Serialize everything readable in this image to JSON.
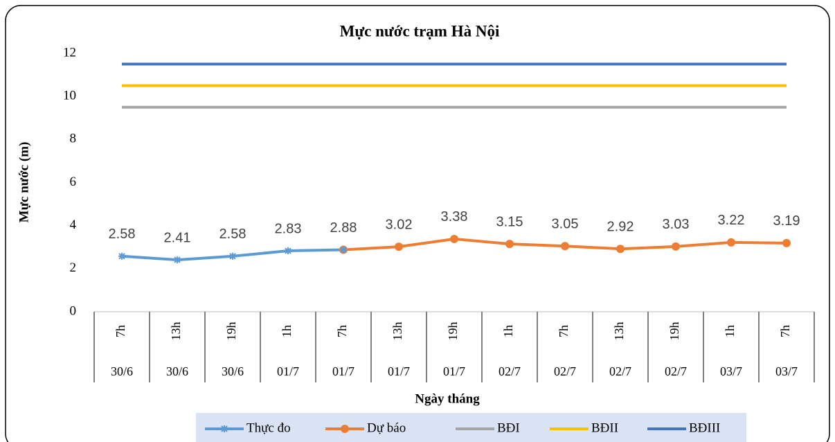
{
  "chart_data": {
    "type": "line",
    "title": "Mực nước trạm Hà Nội",
    "y_label": "Mực nước (m)",
    "x_label": "Ngày tháng",
    "categories": [
      [
        "7h",
        "30/6"
      ],
      [
        "13h",
        "30/6"
      ],
      [
        "19h",
        "30/6"
      ],
      [
        "1h",
        "01/7"
      ],
      [
        "7h",
        "01/7"
      ],
      [
        "13h",
        "01/7"
      ],
      [
        "19h",
        "01/7"
      ],
      [
        "1h",
        "02/7"
      ],
      [
        "7h",
        "02/7"
      ],
      [
        "13h",
        "02/7"
      ],
      [
        "19h",
        "02/7"
      ],
      [
        "1h",
        "03/7"
      ],
      [
        "7h",
        "03/7"
      ]
    ],
    "series": [
      {
        "name": "Thực đo",
        "color": "#5b9bd5",
        "marker": "star",
        "values": [
          2.58,
          2.41,
          2.58,
          2.83,
          2.88,
          null,
          null,
          null,
          null,
          null,
          null,
          null,
          null
        ],
        "labels": true
      },
      {
        "name": "Dự báo",
        "color": "#ed7d31",
        "marker": "circle",
        "values": [
          null,
          null,
          null,
          null,
          2.88,
          3.02,
          3.38,
          3.15,
          3.05,
          2.92,
          3.03,
          3.22,
          3.19
        ],
        "labels": true
      },
      {
        "name": "BĐI",
        "color": "#a5a5a5",
        "values": [
          9.5,
          9.5,
          9.5,
          9.5,
          9.5,
          9.5,
          9.5,
          9.5,
          9.5,
          9.5,
          9.5,
          9.5,
          9.5
        ]
      },
      {
        "name": "BĐII",
        "color": "#ffc000",
        "values": [
          10.5,
          10.5,
          10.5,
          10.5,
          10.5,
          10.5,
          10.5,
          10.5,
          10.5,
          10.5,
          10.5,
          10.5,
          10.5
        ]
      },
      {
        "name": "BĐIII",
        "color": "#4472c4",
        "values": [
          11.5,
          11.5,
          11.5,
          11.5,
          11.5,
          11.5,
          11.5,
          11.5,
          11.5,
          11.5,
          11.5,
          11.5,
          11.5
        ]
      }
    ],
    "ylim": [
      0,
      12
    ],
    "yticks": [
      0,
      2,
      4,
      6,
      8,
      10,
      12
    ],
    "grid": false,
    "legend": "bottom"
  }
}
